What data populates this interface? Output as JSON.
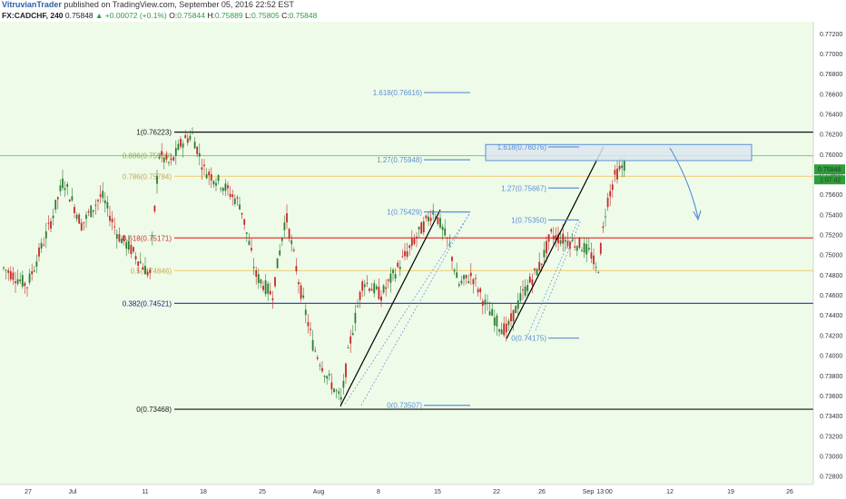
{
  "header": {
    "author": "VitruvianTrader",
    "published": "published on TradingView.com, September 05, 2016 22:52 EST",
    "symbol": "FX:CADCHF, 240",
    "last": "0.75848",
    "change": "▲ +0.00072 (+0.1%)",
    "open_label": "O:",
    "open": "0.75844",
    "high_label": "H:",
    "high": "0.75889",
    "low_label": "L:",
    "low": "0.75805",
    "close_label": "C:",
    "close": "0.75848"
  },
  "colors": {
    "plot_bg": "#eefbe9",
    "up": "#2e7d32",
    "down": "#c62828",
    "fib_blue": "#5b8fd6",
    "level_red": "#e53935",
    "level_blue": "#1a237e",
    "level_yellow": "#f0d27a",
    "level_green": "#7ed67e"
  },
  "chart_data": {
    "type": "candlestick",
    "y_axis_ticks": [
      "0.77200",
      "0.77000",
      "0.76800",
      "0.76600",
      "0.76400",
      "0.76200",
      "0.76000",
      "0.75800",
      "0.75600",
      "0.75400",
      "0.75200",
      "0.75000",
      "0.74800",
      "0.74600",
      "0.74400",
      "0.74200",
      "0.74000",
      "0.73800",
      "0.73600",
      "0.73400",
      "0.73200",
      "0.73000",
      "0.72800"
    ],
    "ylim": [
      0.7272,
      0.7732
    ],
    "x_axis_ticks": [
      "27",
      "Jul",
      "11",
      "18",
      "25",
      "Aug",
      "8",
      "15",
      "22",
      "26",
      "Sep",
      "13:00",
      "12",
      "19",
      "26"
    ],
    "last_price_tag": "0.75848",
    "countdown_tag": "1:07:42",
    "retracement_levels": [
      {
        "label": "1(0.76223)",
        "value": 0.76223
      },
      {
        "label": "0.886(0.75989)",
        "value": 0.75989
      },
      {
        "label": "0.786(0.75784)",
        "value": 0.75784
      },
      {
        "label": "0.618(0.75171)",
        "value": 0.75171
      },
      {
        "label": "0.5(0.74846)",
        "value": 0.74846
      },
      {
        "label": "0.382(0.74521)",
        "value": 0.74521
      },
      {
        "label": "0(0.73468)",
        "value": 0.73468
      }
    ],
    "extension_1": [
      {
        "label": "1.618(0.76616)",
        "value": 0.76616
      },
      {
        "label": "1.27(0.75948)",
        "value": 0.75948
      },
      {
        "label": "1(0.75429)",
        "value": 0.75429
      },
      {
        "label": "0(0.73507)",
        "value": 0.73507
      }
    ],
    "extension_2": [
      {
        "label": "1.618(0.76076)",
        "value": 0.76076
      },
      {
        "label": "1.27(0.75667)",
        "value": 0.75667
      },
      {
        "label": "1(0.75350)",
        "value": 0.7535
      },
      {
        "label": "0(0.74175)",
        "value": 0.74175
      }
    ],
    "target_zone": [
      0.7594,
      0.761
    ],
    "trendlines": [
      {
        "from": [
          0.735,
          "Aug 3"
        ],
        "to": [
          0.7545,
          "Aug 15"
        ]
      },
      {
        "from": [
          0.7417,
          "Aug 23"
        ],
        "to": [
          0.7608,
          "Sep 1"
        ]
      }
    ]
  }
}
